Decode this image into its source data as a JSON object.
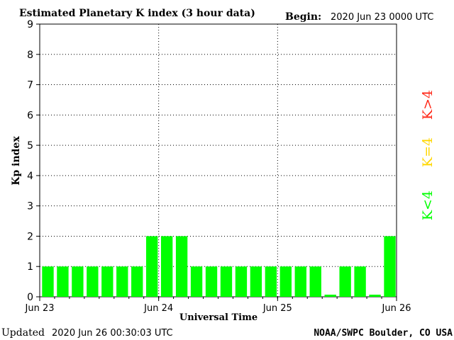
{
  "title": "Estimated Planetary K index (3 hour data)",
  "begin_label": "Begin:",
  "begin_value": "2020 Jun 23 0000 UTC",
  "updated_label": "Updated",
  "updated_value": "2020 Jun 26 00:30:03 UTC",
  "credit": "NOAA/SWPC Boulder, CO USA",
  "legend": {
    "low": {
      "label": "K<4",
      "color": "#00ff00"
    },
    "mid": {
      "label": "K=4",
      "color": "#ffd700"
    },
    "high": {
      "label": "K>4",
      "color": "#ff2a1a"
    }
  },
  "chart_data": {
    "type": "bar",
    "title": "Estimated Planetary K index (3 hour data)",
    "xlabel": "Universal Time",
    "ylabel": "Kp index",
    "ylim": [
      0,
      9
    ],
    "yticks": [
      "0",
      "1",
      "2",
      "3",
      "4",
      "5",
      "6",
      "7",
      "8",
      "9"
    ],
    "xticks": [
      "Jun 23",
      "Jun 24",
      "Jun 25",
      "Jun 26"
    ],
    "grid": true,
    "bar_color": "#00ff00",
    "values": [
      1,
      1,
      1,
      1,
      1,
      1,
      1,
      2,
      2,
      2,
      1,
      1,
      1,
      1,
      1,
      1,
      1,
      1,
      1,
      0.07,
      1,
      1,
      0.07,
      2
    ]
  }
}
